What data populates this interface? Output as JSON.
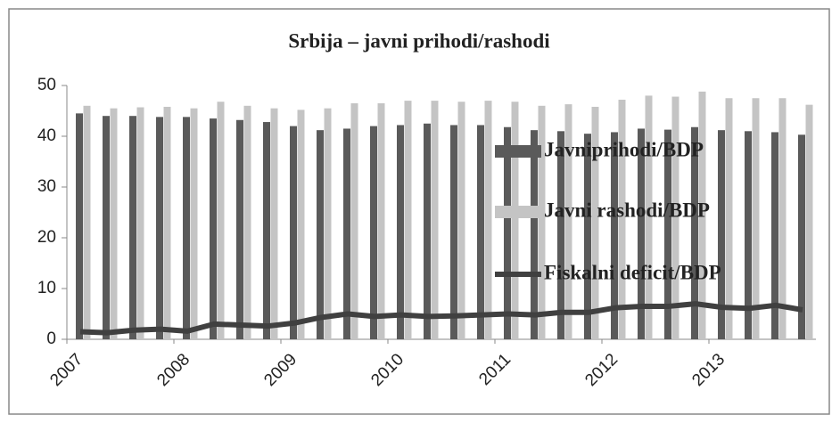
{
  "chart_data": {
    "type": "bar",
    "title": "Srbija – javni prihodi/rashodi",
    "categories": [
      "2007",
      null,
      null,
      null,
      "2008",
      null,
      null,
      null,
      "2009",
      null,
      null,
      null,
      "2010",
      null,
      null,
      null,
      "2011",
      null,
      null,
      null,
      "2012",
      null,
      null,
      null,
      "2013",
      null,
      null,
      null
    ],
    "series": [
      {
        "name": "Javniprihodi/BDP",
        "type": "bar",
        "color": "#5a5a5a",
        "values": [
          44.5,
          44,
          44,
          43.8,
          43.8,
          43.5,
          43.2,
          42.8,
          42,
          41.2,
          41.5,
          42,
          42.2,
          42.5,
          42.2,
          42.2,
          41.8,
          41.2,
          41,
          40.5,
          40.8,
          41.5,
          41.3,
          41.8,
          41.2,
          41,
          40.8,
          40.3
        ]
      },
      {
        "name": "Javni rashodi/BDP",
        "type": "bar",
        "color": "#c4c4c4",
        "values": [
          46,
          45.5,
          45.7,
          45.8,
          45.5,
          46.8,
          46,
          45.5,
          45.2,
          45.5,
          46.5,
          46.5,
          47,
          47,
          46.8,
          47,
          46.8,
          46,
          46.3,
          45.8,
          47.2,
          48,
          47.8,
          48.8,
          47.5,
          47.5,
          47.5,
          46.2
        ]
      },
      {
        "name": "Fiskalni deficit/BDP",
        "type": "line",
        "color": "#404040",
        "values": [
          1.5,
          1.3,
          1.8,
          2,
          1.6,
          3,
          2.8,
          2.6,
          3.2,
          4.3,
          5,
          4.5,
          4.8,
          4.5,
          4.6,
          4.8,
          5,
          4.8,
          5.3,
          5.3,
          6.2,
          6.5,
          6.5,
          7,
          6.3,
          6.1,
          6.7,
          5.8
        ]
      }
    ],
    "ylim": [
      0,
      50
    ],
    "yticks": [
      0,
      10,
      20,
      30,
      40,
      50
    ],
    "legend": "right"
  }
}
